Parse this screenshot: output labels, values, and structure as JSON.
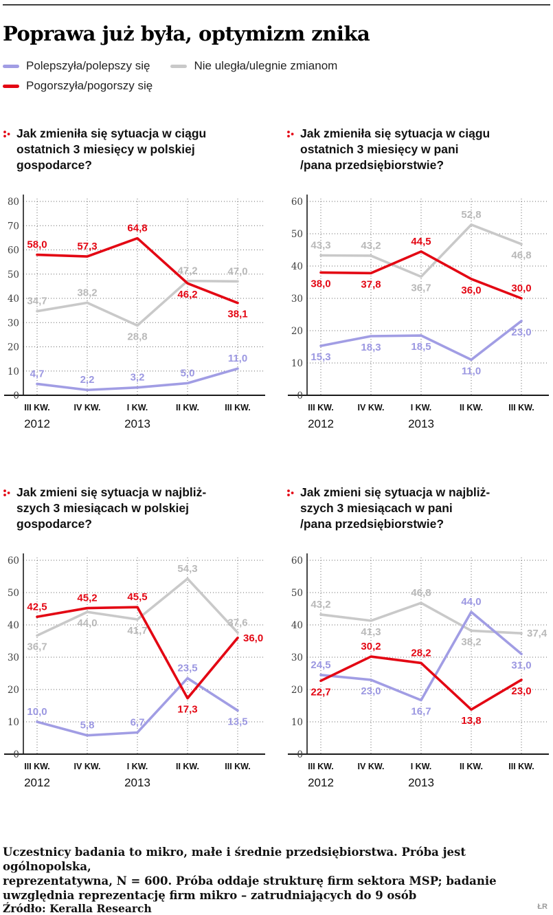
{
  "title": "Poprawa już była, optymizm znika",
  "colors": {
    "improve": "#a19de4",
    "no_change": "#c9c9c9",
    "worsen": "#e30613"
  },
  "label_colors": {
    "improve": "#9b97e1",
    "no_change": "#b9b9b9",
    "worsen": "#e30613"
  },
  "legend": [
    {
      "label": "Polepszyła/polepszy się",
      "color_key": "improve"
    },
    {
      "label": "Nie uległa/ulegnie zmianom",
      "color_key": "no_change"
    },
    {
      "label": "Pogorszyła/pogorszy się",
      "color_key": "worsen"
    }
  ],
  "x_labels": [
    "III KW.",
    "IV KW.",
    "I KW.",
    "II KW.",
    "III KW."
  ],
  "year_labels": [
    {
      "text": "2012",
      "index": 0
    },
    {
      "text": "2013",
      "index": 2
    }
  ],
  "chart_data": [
    {
      "type": "line",
      "question": "Jak zmieniła się sytuacja w ciągu\nostatnich 3 miesięcy w polskiej\ngospodarce?",
      "ylim": [
        0,
        80
      ],
      "yticks": [
        0,
        10,
        20,
        30,
        40,
        50,
        60,
        70,
        80
      ],
      "categories": [
        "III KW. 2012",
        "IV KW. 2012",
        "I KW. 2013",
        "II KW. 2013",
        "III KW. 2013"
      ],
      "series": [
        {
          "name": "Nie uległa/ulegnie zmianom",
          "color": "no_change",
          "values": [
            34.7,
            38.2,
            28.8,
            47.2,
            47.0
          ],
          "label_pos": [
            "a",
            "a",
            "b",
            "a",
            "a"
          ]
        },
        {
          "name": "Polepszyła/polepszy się",
          "color": "improve",
          "values": [
            4.7,
            2.2,
            3.2,
            5.0,
            11.0
          ],
          "label_pos": [
            "a",
            "a",
            "a",
            "a",
            "a"
          ]
        },
        {
          "name": "Pogorszyła/pogorszy się",
          "color": "worsen",
          "values": [
            58.0,
            57.3,
            64.8,
            46.2,
            38.1
          ],
          "label_pos": [
            "a",
            "a",
            "a",
            "b",
            "b"
          ]
        }
      ]
    },
    {
      "type": "line",
      "question": "Jak zmieniła się sytuacja w ciągu\nostatnich 3 miesięcy w pani\n/pana przedsiębiorstwie?",
      "ylim": [
        0,
        60
      ],
      "yticks": [
        0,
        10,
        20,
        30,
        40,
        50,
        60
      ],
      "categories": [
        "III KW. 2012",
        "IV KW. 2012",
        "I KW. 2013",
        "II KW. 2013",
        "III KW. 2013"
      ],
      "series": [
        {
          "name": "Nie uległa/ulegnie zmianom",
          "color": "no_change",
          "values": [
            43.3,
            43.2,
            36.7,
            52.8,
            46.8
          ],
          "label_pos": [
            "a",
            "a",
            "b",
            "a",
            "b"
          ]
        },
        {
          "name": "Polepszyła/polepszy się",
          "color": "improve",
          "values": [
            15.3,
            18.3,
            18.5,
            11.0,
            23.0
          ],
          "label_pos": [
            "b",
            "b",
            "b",
            "b",
            "b"
          ]
        },
        {
          "name": "Pogorszyła/pogorszy się",
          "color": "worsen",
          "values": [
            38.0,
            37.8,
            44.5,
            36.0,
            30.0
          ],
          "label_pos": [
            "b",
            "b",
            "a",
            "b",
            "a"
          ]
        }
      ]
    },
    {
      "type": "line",
      "question": "Jak zmieni się sytuacja w najbliż-\nszych 3 miesiącach w polskiej\ngospodarce?",
      "ylim": [
        0,
        60
      ],
      "yticks": [
        0,
        10,
        20,
        30,
        40,
        50,
        60
      ],
      "categories": [
        "III KW. 2012",
        "IV KW. 2012",
        "I KW. 2013",
        "II KW. 2013",
        "III KW. 2013"
      ],
      "series": [
        {
          "name": "Nie uległa/ulegnie zmianom",
          "color": "no_change",
          "values": [
            36.7,
            44.0,
            41.7,
            54.3,
            37.6
          ],
          "label_pos": [
            "b",
            "b",
            "b",
            "a",
            "a"
          ]
        },
        {
          "name": "Polepszyła/polepszy się",
          "color": "improve",
          "values": [
            10.0,
            5.8,
            6.7,
            23.5,
            13.5
          ],
          "label_pos": [
            "a",
            "a",
            "a",
            "a",
            "b"
          ]
        },
        {
          "name": "Pogorszyła/pogorszy się",
          "color": "worsen",
          "values": [
            42.5,
            45.2,
            45.5,
            17.3,
            36.0
          ],
          "label_pos": [
            "a",
            "a",
            "a",
            "b",
            "r"
          ]
        }
      ]
    },
    {
      "type": "line",
      "question": "Jak zmieni się sytuacja w najbliż-\nszych 3 miesiącach w pani\n/pana przedsiębiorstwie?",
      "ylim": [
        0,
        60
      ],
      "yticks": [
        0,
        10,
        20,
        30,
        40,
        50,
        60
      ],
      "categories": [
        "III KW. 2012",
        "IV KW. 2012",
        "I KW. 2013",
        "II KW. 2013",
        "III KW. 2013"
      ],
      "series": [
        {
          "name": "Nie uległa/ulegnie zmianom",
          "color": "no_change",
          "values": [
            43.2,
            41.3,
            46.8,
            38.2,
            37.4
          ],
          "label_pos": [
            "a",
            "b",
            "a",
            "b",
            "r"
          ]
        },
        {
          "name": "Polepszyła/polepszy się",
          "color": "improve",
          "values": [
            24.5,
            23.0,
            16.7,
            44.0,
            31.0
          ],
          "label_pos": [
            "a",
            "b",
            "b",
            "a",
            "b"
          ]
        },
        {
          "name": "Pogorszyła/pogorszy się",
          "color": "worsen",
          "values": [
            22.7,
            30.2,
            28.2,
            13.8,
            23.0
          ],
          "label_pos": [
            "b",
            "a",
            "a",
            "b",
            "b"
          ]
        }
      ]
    }
  ],
  "footer": {
    "note": "Uczestnicy badania to mikro, małe i średnie przedsiębiorstwa. Próba jest ogólnopolska,\nreprezentatywna, N = 600. Próba oddaje strukturę firm sektora MSP; badanie\nuwzględnia reprezentację firm mikro – zatrudniających do 9 osób",
    "source": "Źródło: Keralla Research",
    "credit": "ŁR"
  }
}
